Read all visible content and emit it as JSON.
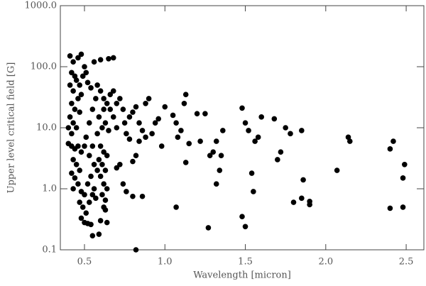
{
  "chart_data": {
    "type": "scatter",
    "xlabel": "Wavelength [micron]",
    "ylabel": "Upper level critical field [G]",
    "xlim": [
      0.35,
      2.61
    ],
    "ylim": [
      0.1,
      1000
    ],
    "ylog": true,
    "color": "#000000",
    "xticks": [
      0.5,
      {
        "value": 1.0,
        "label": "1.0"
      },
      1.5,
      {
        "value": 2.0,
        "label": "2.0"
      },
      2.5
    ],
    "yticks": [
      {
        "value": 0.1,
        "label": "0.1"
      },
      {
        "value": 1,
        "label": "1.0"
      },
      {
        "value": 10,
        "label": "10.0"
      },
      {
        "value": 100,
        "label": "100.0"
      },
      {
        "value": 1000,
        "label": "1000.0"
      }
    ],
    "x": [
      0.41,
      0.43,
      0.42,
      0.44,
      0.41,
      0.43,
      0.45,
      0.47,
      0.46,
      0.42,
      0.44,
      0.41,
      0.43,
      0.45,
      0.4,
      0.42,
      0.47,
      0.48,
      0.49,
      0.5,
      0.51,
      0.52,
      0.46,
      0.48,
      0.4,
      0.42,
      0.44,
      0.46,
      0.48,
      0.5,
      0.43,
      0.45,
      0.47,
      0.42,
      0.44,
      0.46,
      0.43,
      0.48,
      0.5,
      0.47,
      0.49,
      0.51,
      0.48,
      0.52,
      0.54,
      0.55,
      0.5,
      0.53,
      0.55,
      0.52,
      0.54,
      0.56,
      0.53,
      0.55,
      0.51,
      0.53,
      0.55,
      0.57,
      0.54,
      0.56,
      0.58,
      0.6,
      0.62,
      0.64,
      0.66,
      0.68,
      0.6,
      0.65,
      0.68,
      0.62,
      0.59,
      0.61,
      0.63,
      0.65,
      0.58,
      0.6,
      0.62,
      0.64,
      0.59,
      0.61,
      0.63,
      0.6,
      0.62,
      0.64,
      0.61,
      0.63,
      0.62,
      0.63,
      0.6,
      0.59,
      0.64,
      0.57,
      0.56,
      0.58,
      0.66,
      0.68,
      0.7,
      0.7,
      0.72,
      0.74,
      0.75,
      0.76,
      0.78,
      0.8,
      0.82,
      0.84,
      0.86,
      0.88,
      0.9,
      0.92,
      0.94,
      0.96,
      0.98,
      1.0,
      0.72,
      0.74,
      0.76,
      0.8,
      0.86,
      0.82,
      0.8,
      0.84,
      0.88,
      0.7,
      0.78,
      0.82,
      1.05,
      1.07,
      1.08,
      1.1,
      1.12,
      1.13,
      1.15,
      1.13,
      1.2,
      1.22,
      1.25,
      1.28,
      1.3,
      1.32,
      1.34,
      1.36,
      1.32,
      1.27,
      1.07,
      1.48,
      1.5,
      1.52,
      1.54,
      1.55,
      1.48,
      1.5,
      1.56,
      1.58,
      1.6,
      1.68,
      1.7,
      1.72,
      1.75,
      1.78,
      1.8,
      1.85,
      1.86,
      1.85,
      1.9,
      1.9,
      2.07,
      2.14,
      2.15,
      2.4,
      2.42,
      2.4,
      2.48,
      2.49,
      2.48,
      1.35
    ],
    "values": [
      150,
      120,
      80,
      70,
      50,
      40,
      60,
      50,
      30,
      25,
      20,
      15,
      12,
      10,
      10,
      8,
      18,
      35,
      70,
      100,
      80,
      55,
      140,
      160,
      5.5,
      5,
      4.5,
      5,
      4,
      5,
      3,
      2.5,
      2,
      1.8,
      1.5,
      1.2,
      1.0,
      0.9,
      0.8,
      0.6,
      0.5,
      0.4,
      0.33,
      0.27,
      0.26,
      0.17,
      0.28,
      0.6,
      0.8,
      1.2,
      1.6,
      2.5,
      3.5,
      5,
      7,
      12,
      20,
      30,
      45,
      120,
      50,
      40,
      30,
      25,
      35,
      40,
      130,
      135,
      140,
      20,
      15,
      10,
      12,
      9,
      8,
      5,
      4,
      3.5,
      3,
      2.5,
      2,
      1.6,
      1.2,
      1.0,
      0.8,
      0.65,
      0.5,
      0.45,
      0.3,
      0.18,
      0.28,
      0.7,
      1.0,
      2,
      20,
      15,
      10,
      25,
      30,
      20,
      12,
      8,
      15,
      18,
      22,
      12,
      9,
      25,
      30,
      8,
      12,
      14,
      5,
      22,
      2.5,
      1.2,
      0.9,
      0.75,
      0.75,
      0.1,
      2.8,
      6,
      7,
      2.2,
      6.5,
      3.5,
      16,
      12,
      7,
      9,
      25,
      35,
      5.5,
      2.7,
      17,
      6,
      17,
      3.5,
      4,
      6,
      2,
      9,
      1.2,
      0.23,
      0.5,
      21,
      12,
      9,
      1.8,
      0.9,
      0.35,
      0.24,
      6,
      7,
      15,
      14,
      3,
      4,
      10,
      8,
      0.6,
      9,
      1.4,
      0.7,
      0.55,
      0.62,
      2,
      7,
      6,
      4.5,
      6,
      0.48,
      1.5,
      2.5,
      0.5,
      3.5
    ]
  }
}
